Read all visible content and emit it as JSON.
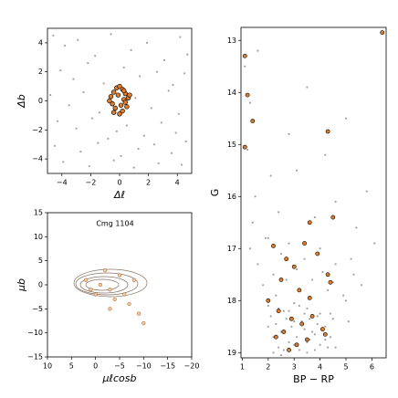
{
  "chart_data": [
    {
      "type": "scatter",
      "xlabel": "Δℓ",
      "ylabel": "Δb",
      "xlim": [
        -5,
        5
      ],
      "ylim": [
        -5,
        5
      ],
      "xticks": [
        {
          "value": -4,
          "label": "−4"
        },
        {
          "value": -2,
          "label": "−2"
        },
        0,
        2,
        4
      ],
      "yticks": [
        {
          "value": -4,
          "label": "−4"
        },
        {
          "value": -2,
          "label": "−2"
        },
        0,
        2,
        4
      ],
      "series": [
        {
          "color": "#8c8c8c",
          "x": [
            -4.6,
            -3.8,
            -2.9,
            -1.7,
            -0.6,
            0.8,
            1.9,
            3.1,
            4.2,
            4.7,
            -4.1,
            -3.2,
            -2.2,
            -1.1,
            0.3,
            1.4,
            2.6,
            3.7,
            4.5,
            -4.8,
            -3.5,
            -2.5,
            -1.4,
            -0.2,
            1.1,
            2.2,
            3.4,
            4.1,
            -4.3,
            -3.0,
            -1.9,
            -0.8,
            0.5,
            1.7,
            2.9,
            3.9,
            -4.5,
            -2.7,
            -1.5,
            0.1,
            1.3,
            2.4,
            3.6,
            4.6,
            -3.9,
            -2.1,
            -0.4,
            1.0,
            2.7,
            4.3
          ],
          "values": [
            4.5,
            3.8,
            4.2,
            3.1,
            4.6,
            3.5,
            4.0,
            2.8,
            4.4,
            3.2,
            2.1,
            1.5,
            2.6,
            1.2,
            2.3,
            1.7,
            2.0,
            1.1,
            1.9,
            0.4,
            -0.3,
            0.6,
            -0.8,
            -2.1,
            0.2,
            -0.5,
            0.7,
            -0.9,
            -1.4,
            -1.9,
            -1.2,
            -2.6,
            -1.7,
            -2.4,
            -1.5,
            -2.2,
            -3.1,
            -3.5,
            -2.9,
            -3.8,
            -3.3,
            -3.0,
            -3.6,
            -2.8,
            -4.2,
            -4.5,
            -4.1,
            -4.6,
            -4.3,
            -4.4
          ]
        },
        {
          "color": "#e07b2a",
          "x": [
            -0.6,
            -0.4,
            -0.2,
            0,
            0.2,
            0.4,
            0.6,
            -0.5,
            -0.3,
            0.1,
            0.3,
            0.5,
            -0.1,
            0.2,
            -0.4,
            0.4,
            0.0,
            -0.7,
            0.7,
            0.3
          ],
          "values": [
            0.3,
            0.6,
            0.9,
            1.0,
            0.8,
            0.5,
            0.2,
            -0.2,
            -0.5,
            -0.3,
            0.1,
            -0.4,
            0.4,
            -0.7,
            -0.8,
            -0.1,
            -0.9,
            0.0,
            0.4,
            0.7
          ]
        }
      ]
    },
    {
      "type": "scatter",
      "xlabel": "μℓcosb",
      "ylabel": "μb",
      "annotation": "Cmg 1104",
      "xlim": [
        10,
        -20
      ],
      "ylim": [
        -15,
        15
      ],
      "xticks": [
        10,
        5,
        0,
        {
          "value": -5,
          "label": "−5"
        },
        {
          "value": -10,
          "label": "−10"
        },
        {
          "value": -15,
          "label": "−15"
        },
        {
          "value": -20,
          "label": "−20"
        }
      ],
      "yticks": [
        {
          "value": -15,
          "label": "−15"
        },
        {
          "value": -10,
          "label": "−10"
        },
        {
          "value": -5,
          "label": "−5"
        },
        0,
        5,
        10,
        15
      ],
      "series": [
        {
          "color": "#f3cba5",
          "x": [
            2,
            -1,
            -3,
            -5,
            -6,
            -2,
            0,
            -4,
            -7,
            -8,
            -3,
            -10,
            -9,
            1
          ],
          "values": [
            1,
            0,
            -1,
            2,
            -2,
            3,
            -2,
            -3,
            -4,
            1,
            -5,
            -8,
            -6,
            -1
          ]
        }
      ]
    },
    {
      "type": "scatter",
      "xlabel": "BP − RP",
      "ylabel": "G",
      "xlim": [
        0.95,
        6.55
      ],
      "ylim": [
        19.1,
        12.75
      ],
      "xticks": [
        1,
        2,
        3,
        4,
        5,
        6
      ],
      "yticks": [
        13,
        14,
        15,
        16,
        17,
        18,
        19
      ],
      "series": [
        {
          "color": "#8c8c8c",
          "x": [
            1.1,
            1.3,
            1.6,
            2.1,
            2.8,
            3.5,
            4.2,
            5.0,
            5.8,
            1.2,
            1.5,
            2.4,
            3.1,
            4.6,
            5.4,
            6.1,
            1.4,
            2.0,
            3.8,
            5.2,
            1.3,
            1.6,
            1.9,
            2.2,
            2.5,
            2.8,
            3.1,
            3.4,
            3.7,
            4.0,
            4.3,
            4.6,
            4.9,
            5.3,
            1.8,
            2.3,
            2.7,
            3.2,
            3.6,
            4.1,
            4.5,
            5.0,
            5.6,
            2.0,
            2.6,
            3.0,
            3.5,
            3.9,
            4.4,
            5.1,
            2.0,
            2.2,
            2.4,
            2.6,
            2.8,
            3.0,
            3.2,
            3.4,
            3.6,
            3.8,
            4.0,
            4.2,
            4.4,
            4.6,
            2.1,
            2.3,
            2.5,
            2.7,
            2.9,
            3.1,
            3.3,
            3.5,
            3.7,
            3.9,
            4.1,
            4.3,
            4.5,
            2.2,
            2.6,
            3.0,
            3.4,
            3.8,
            4.2,
            2.4,
            2.8,
            3.2,
            3.6,
            4.0,
            2.5,
            3.5
          ],
          "values": [
            13.5,
            14.2,
            13.2,
            15.6,
            14.8,
            13.9,
            15.2,
            14.5,
            15.9,
            15.1,
            16.0,
            16.3,
            15.5,
            16.1,
            16.6,
            16.9,
            16.5,
            16.8,
            16.4,
            17.2,
            17.0,
            17.3,
            16.8,
            17.5,
            17.1,
            16.9,
            17.4,
            17.2,
            17.6,
            17.0,
            17.8,
            17.3,
            17.9,
            17.5,
            17.7,
            17.9,
            17.6,
            17.8,
            17.95,
            17.45,
            17.65,
            18.0,
            17.7,
            18.1,
            18.2,
            18.05,
            18.15,
            18.3,
            18.25,
            18.4,
            18.5,
            18.7,
            18.9,
            18.6,
            18.8,
            18.4,
            18.95,
            18.55,
            18.75,
            18.65,
            18.85,
            18.5,
            18.7,
            18.9,
            18.3,
            18.45,
            18.6,
            18.35,
            18.5,
            18.7,
            18.4,
            18.8,
            18.6,
            18.45,
            18.55,
            18.9,
            18.35,
            19.0,
            18.95,
            18.85,
            18.25,
            18.95,
            18.75,
            18.15,
            18.2,
            18.1,
            18.35,
            18.25,
            19.05,
            19.0
          ]
        },
        {
          "color": "#e07b2a",
          "x": [
            6.4,
            1.1,
            1.2,
            1.4,
            4.3,
            1.1,
            4.5,
            3.6,
            3.4,
            2.2,
            2.7,
            3.0,
            3.9,
            4.3,
            4.4,
            2.5,
            3.2,
            3.6,
            2.0,
            2.4,
            2.9,
            3.3,
            3.7,
            4.1,
            2.3,
            2.6,
            3.1,
            3.5,
            4.2,
            2.8
          ],
          "values": [
            12.85,
            13.3,
            14.05,
            14.55,
            14.75,
            15.05,
            16.4,
            16.5,
            16.9,
            16.95,
            17.2,
            17.35,
            17.1,
            17.5,
            17.65,
            17.6,
            17.8,
            17.95,
            18.0,
            18.2,
            18.35,
            18.45,
            18.3,
            18.55,
            18.7,
            18.6,
            18.85,
            18.75,
            18.65,
            18.95
          ]
        }
      ]
    }
  ]
}
